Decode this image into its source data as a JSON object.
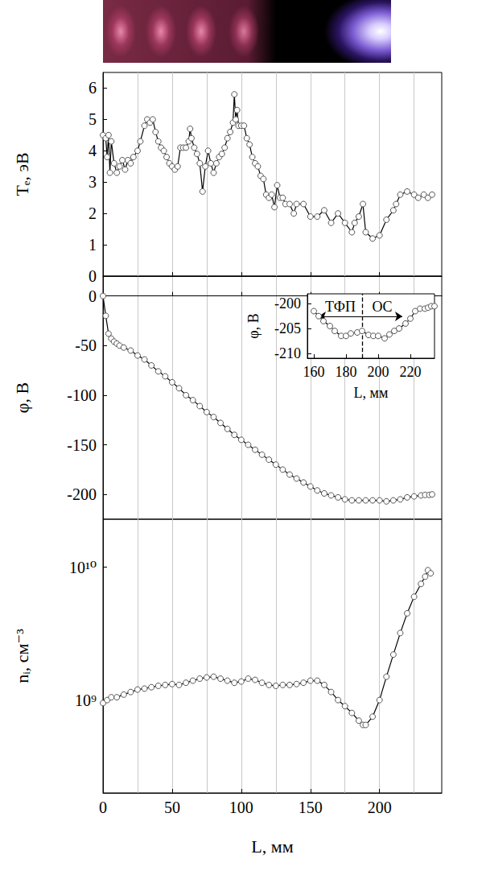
{
  "chart_data": [
    {
      "type": "line",
      "ylabel": "Tₑ, эВ",
      "color": "#000000",
      "marker": "circle",
      "grid": true,
      "tick_labels": "y",
      "xlim": [
        0,
        245
      ],
      "xticks": [
        0,
        50,
        100,
        150,
        200
      ],
      "ylim": [
        0,
        6.5
      ],
      "yticks": [
        0,
        1,
        2,
        3,
        4,
        5,
        6
      ],
      "x": [
        0,
        2,
        3,
        4,
        5,
        6,
        8,
        10,
        12,
        14,
        16,
        18,
        20,
        22,
        25,
        27,
        30,
        32,
        34,
        36,
        38,
        40,
        42,
        44,
        46,
        48,
        50,
        52,
        54,
        56,
        58,
        60,
        62,
        63,
        64,
        66,
        68,
        70,
        72,
        74,
        76,
        78,
        80,
        82,
        84,
        86,
        88,
        90,
        92,
        94,
        95,
        96,
        97,
        98,
        100,
        102,
        104,
        106,
        108,
        110,
        112,
        114,
        116,
        118,
        120,
        122,
        124,
        126,
        128,
        130,
        132,
        135,
        138,
        140,
        145,
        150,
        155,
        160,
        165,
        170,
        175,
        180,
        182,
        185,
        188,
        190,
        195,
        200,
        205,
        210,
        212,
        215,
        220,
        225,
        228,
        232,
        235,
        238
      ],
      "values": [
        4.5,
        4.4,
        3.8,
        4.5,
        3.3,
        4.3,
        3.6,
        3.3,
        3.5,
        3.7,
        3.4,
        3.7,
        3.6,
        3.8,
        4.0,
        4.3,
        4.8,
        5.0,
        4.9,
        5.0,
        4.6,
        4.3,
        4.1,
        4.0,
        3.8,
        3.6,
        3.5,
        3.4,
        3.5,
        4.1,
        4.1,
        4.1,
        4.3,
        4.7,
        4.4,
        4.1,
        3.9,
        3.6,
        2.7,
        3.5,
        4.0,
        3.6,
        3.3,
        3.6,
        3.8,
        3.9,
        4.1,
        4.4,
        4.6,
        4.9,
        5.8,
        5.0,
        5.3,
        4.8,
        4.8,
        4.8,
        4.4,
        4.2,
        3.8,
        3.6,
        3.5,
        3.2,
        3.1,
        2.6,
        2.5,
        2.6,
        2.2,
        2.9,
        2.5,
        2.5,
        2.3,
        2.3,
        2.0,
        2.3,
        2.3,
        1.9,
        1.9,
        2.1,
        1.7,
        2.0,
        1.7,
        1.4,
        1.7,
        1.9,
        2.3,
        1.4,
        1.2,
        1.3,
        1.8,
        2.1,
        2.3,
        2.6,
        2.7,
        2.6,
        2.5,
        2.6,
        2.5,
        2.6
      ]
    },
    {
      "type": "line",
      "ylabel": "φ, В",
      "color": "#000000",
      "marker": "circle",
      "grid": true,
      "tick_labels": "y",
      "xlim": [
        0,
        245
      ],
      "xticks": [
        0,
        50,
        100,
        150,
        200
      ],
      "ylim": [
        -225,
        20
      ],
      "yticks": [
        -200,
        -150,
        -100,
        -50,
        0
      ],
      "x": [
        0,
        2,
        4,
        6,
        8,
        10,
        12,
        15,
        20,
        25,
        30,
        35,
        40,
        45,
        50,
        55,
        60,
        65,
        70,
        75,
        80,
        85,
        90,
        95,
        100,
        105,
        110,
        115,
        120,
        125,
        130,
        135,
        140,
        145,
        150,
        155,
        160,
        165,
        170,
        175,
        180,
        185,
        190,
        195,
        200,
        205,
        210,
        215,
        220,
        225,
        230,
        233,
        236,
        238
      ],
      "values": [
        0,
        -20,
        -38,
        -43,
        -46,
        -48,
        -50,
        -52,
        -55,
        -60,
        -64,
        -70,
        -76,
        -81,
        -87,
        -93,
        -100,
        -105,
        -111,
        -117,
        -122,
        -128,
        -134,
        -140,
        -145,
        -150,
        -155,
        -160,
        -165,
        -170,
        -175,
        -180,
        -184,
        -188,
        -192,
        -196,
        -199,
        -201,
        -203,
        -205,
        -206,
        -206,
        -206,
        -206,
        -206,
        -207,
        -206,
        -205,
        -203,
        -202,
        -201,
        -200.5,
        -200.5,
        -200
      ]
    },
    {
      "type": "line",
      "ylabel": "nᵢ, см⁻³",
      "xlabel": "L, мм",
      "color": "#000000",
      "marker": "circle",
      "grid": true,
      "log": "y",
      "xlim": [
        0,
        245
      ],
      "xticks": [
        0,
        50,
        100,
        150,
        200
      ],
      "ylim": [
        200000000,
        23000000000
      ],
      "yticks": [
        {
          "value": 1000000000,
          "label": "10⁹"
        },
        {
          "value": 10000000000,
          "label": "10¹⁰"
        }
      ],
      "x": [
        0,
        3,
        6,
        10,
        15,
        20,
        25,
        30,
        35,
        40,
        45,
        50,
        55,
        60,
        65,
        70,
        75,
        80,
        85,
        90,
        95,
        100,
        105,
        110,
        115,
        120,
        125,
        130,
        135,
        140,
        145,
        150,
        155,
        160,
        165,
        170,
        175,
        180,
        185,
        188,
        190,
        195,
        200,
        205,
        210,
        215,
        220,
        225,
        230,
        233,
        235,
        237
      ],
      "values": [
        950000000,
        1000000000,
        1050000000,
        1050000000,
        1100000000,
        1150000000,
        1200000000,
        1220000000,
        1250000000,
        1280000000,
        1300000000,
        1320000000,
        1300000000,
        1350000000,
        1400000000,
        1450000000,
        1480000000,
        1500000000,
        1450000000,
        1400000000,
        1350000000,
        1380000000,
        1450000000,
        1420000000,
        1350000000,
        1300000000,
        1280000000,
        1300000000,
        1300000000,
        1320000000,
        1350000000,
        1400000000,
        1400000000,
        1300000000,
        1150000000,
        1000000000,
        900000000,
        800000000,
        700000000,
        650000000,
        650000000,
        750000000,
        1000000000,
        1500000000,
        2200000000,
        3200000000,
        4500000000,
        6000000000,
        7500000000,
        8500000000,
        9500000000,
        9000000000
      ]
    },
    {
      "type": "line",
      "ylabel": "φ, В",
      "xlabel": "L, мм",
      "color": "#000000",
      "marker": "circle",
      "grid": false,
      "xlim": [
        156,
        235
      ],
      "xticks": [
        160,
        180,
        200,
        220
      ],
      "ylim": [
        -211,
        -198
      ],
      "yticks": [
        -210,
        -205,
        -200
      ],
      "x": [
        160,
        163,
        166,
        170,
        173,
        177,
        180,
        183,
        187,
        190,
        194,
        197,
        200,
        204,
        207,
        210,
        213,
        217,
        220,
        223,
        226,
        229,
        231,
        233,
        235
      ],
      "values": [
        -201.5,
        -202.5,
        -203.5,
        -204.5,
        -205.5,
        -206.5,
        -206.5,
        -206,
        -205.8,
        -205.5,
        -206.3,
        -206.5,
        -206.5,
        -207,
        -206.2,
        -205.5,
        -205,
        -204,
        -203,
        -201.5,
        -201,
        -201,
        -200.8,
        -200.5,
        -200.5
      ],
      "divider": 190,
      "annotations": [
        {
          "text": "ТФП",
          "x": [
            163,
            190
          ]
        },
        {
          "text": "ОС",
          "x": [
            190,
            215
          ]
        }
      ]
    }
  ]
}
